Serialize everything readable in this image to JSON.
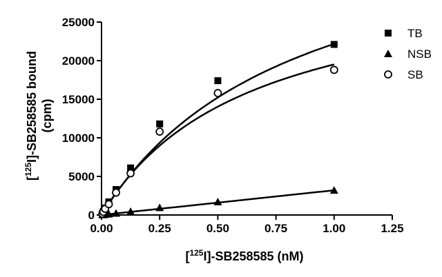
{
  "chart_data": {
    "type": "scatter",
    "title": "",
    "xlabel": {
      "prefix": "[",
      "sup": "125",
      "suffix": "I]-SB258585 (nM)"
    },
    "ylabel": {
      "line1_prefix": "[",
      "line1_sup": "125",
      "line1_suffix": "I]-SB258585 bound",
      "line2": "(cpm)"
    },
    "xlim": [
      0,
      1.25
    ],
    "ylim": [
      0,
      25000
    ],
    "xticks": [
      0,
      0.25,
      0.5,
      0.75,
      1.0,
      1.25
    ],
    "xtick_labels": [
      "0.00",
      "0.25",
      "0.50",
      "0.75",
      "1.00",
      "1.25"
    ],
    "yticks": [
      0,
      5000,
      10000,
      15000,
      20000,
      25000
    ],
    "ytick_labels": [
      "0",
      "5000",
      "10000",
      "15000",
      "20000",
      "25000"
    ],
    "grid": false,
    "legend_position": "top-right",
    "series": [
      {
        "name": "TB",
        "marker": "square-filled",
        "x": [
          0.0039,
          0.0078,
          0.0156,
          0.03125,
          0.0625,
          0.125,
          0.25,
          0.5,
          1.0
        ],
        "y": [
          200,
          450,
          900,
          1700,
          3300,
          6100,
          11800,
          17400,
          22100
        ],
        "fit": {
          "model": "one-site-hyperbola",
          "bmax": 40800,
          "kd": 0.84
        }
      },
      {
        "name": "NSB",
        "marker": "triangle-filled",
        "x": [
          0.0039,
          0.0078,
          0.0156,
          0.03125,
          0.0625,
          0.125,
          0.25,
          0.5,
          1.0
        ],
        "y": [
          20,
          40,
          70,
          120,
          220,
          450,
          950,
          1700,
          3200
        ],
        "fit": {
          "model": "linear",
          "slope": 3200
        }
      },
      {
        "name": "SB",
        "marker": "circle-open",
        "x": [
          0.0039,
          0.0078,
          0.0156,
          0.03125,
          0.0625,
          0.125,
          0.25,
          0.5,
          1.0
        ],
        "y": [
          150,
          400,
          800,
          1400,
          2900,
          5400,
          10800,
          15800,
          18800
        ],
        "fit": {
          "model": "one-site-hyperbola",
          "bmax": 32000,
          "kd": 0.64
        }
      }
    ]
  }
}
